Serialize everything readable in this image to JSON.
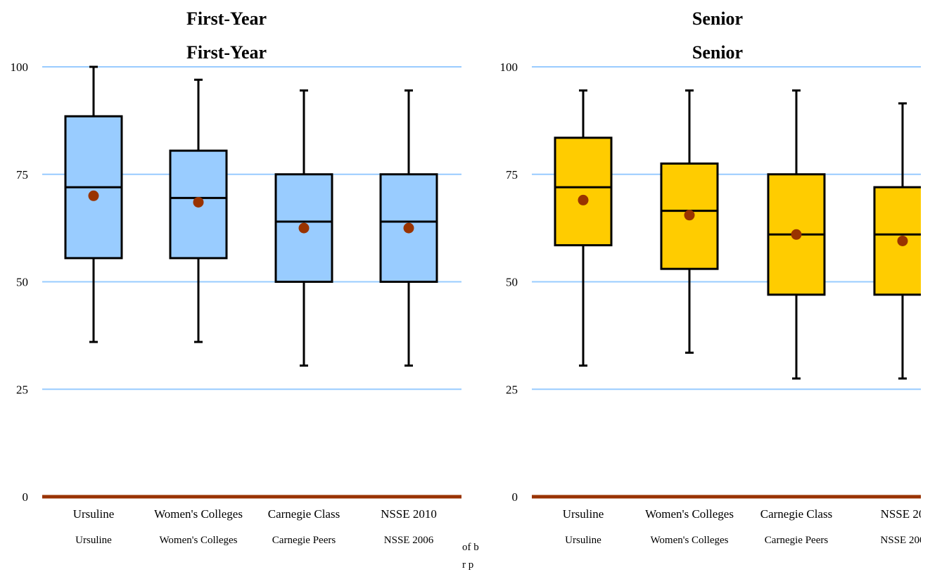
{
  "chart_data": [
    {
      "type": "box",
      "title": "First-Year",
      "title_repeat": "First-Year",
      "ylim": [
        0,
        100
      ],
      "yticks": [
        "0",
        "25",
        "50",
        "75",
        "100"
      ],
      "grid": true,
      "categories": [
        "Ursuline",
        "Women's Colleges",
        "Carnegie Class",
        "NSSE 2010"
      ],
      "ghost_categories": [
        "Ursuline",
        "Women's Colleges",
        "Carnegie Peers",
        "NSSE 2006"
      ],
      "ghost_note": [
        "of b",
        "r p"
      ],
      "box_color": "#99ccff",
      "grid_color": "#99ccff",
      "mean_color": "#993300",
      "baseline_color": "#993300",
      "boxes": [
        {
          "min": 36,
          "q1": 55.5,
          "median": 72,
          "q3": 88.5,
          "max": 100,
          "mean": 70
        },
        {
          "min": 36,
          "q1": 55.5,
          "median": 69.5,
          "q3": 80.5,
          "max": 97,
          "mean": 68.5
        },
        {
          "min": 30.5,
          "q1": 50,
          "median": 64,
          "q3": 75,
          "max": 94.5,
          "mean": 62.5
        },
        {
          "min": 30.5,
          "q1": 50,
          "median": 64,
          "q3": 75,
          "max": 94.5,
          "mean": 62.5
        }
      ]
    },
    {
      "type": "box",
      "title": "Senior",
      "title_repeat": "Senior",
      "ylim": [
        0,
        100
      ],
      "yticks": [
        "0",
        "25",
        "50",
        "75",
        "100"
      ],
      "grid": true,
      "categories": [
        "Ursuline",
        "Women's Colleges",
        "Carnegie Class",
        "NSSE 20"
      ],
      "ghost_categories": [
        "Ursuline",
        "Women's Colleges",
        "Carnegie Peers",
        "NSSE 200"
      ],
      "ghost_note": [],
      "box_color": "#ffcc00",
      "grid_color": "#99ccff",
      "mean_color": "#993300",
      "baseline_color": "#993300",
      "boxes": [
        {
          "min": 30.5,
          "q1": 58.5,
          "median": 72,
          "q3": 83.5,
          "max": 94.5,
          "mean": 69
        },
        {
          "min": 33.5,
          "q1": 53,
          "median": 66.5,
          "q3": 77.5,
          "max": 94.5,
          "mean": 65.5
        },
        {
          "min": 27.5,
          "q1": 47,
          "median": 61,
          "q3": 75,
          "max": 94.5,
          "mean": 61
        },
        {
          "min": 27.5,
          "q1": 47,
          "median": 61,
          "q3": 72,
          "max": 91.5,
          "mean": 59.5
        }
      ]
    }
  ]
}
